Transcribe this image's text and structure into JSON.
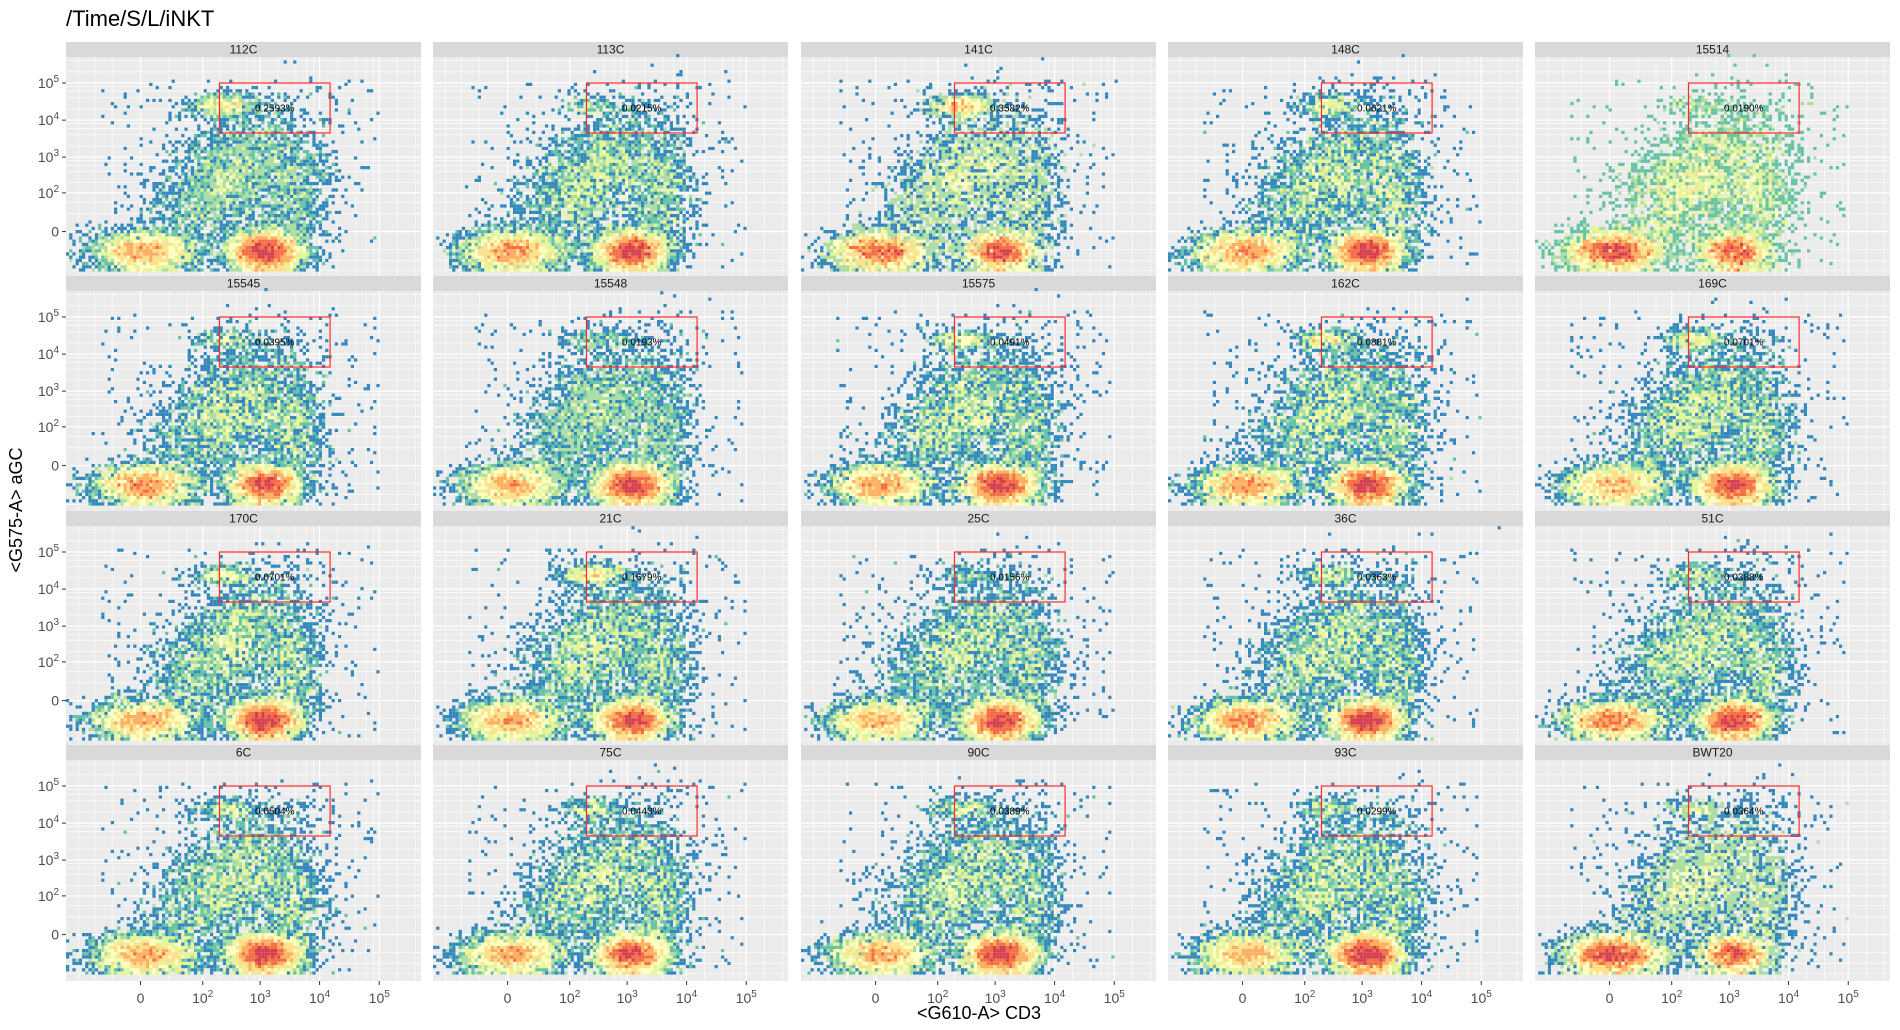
{
  "chart_data": {
    "type": "scatter",
    "title": "/Time/S/L/iNKT",
    "xlabel": "<G610-A> CD3",
    "ylabel": "<G575-A> aGC",
    "x_ticks": [
      {
        "value": 0,
        "base": "0",
        "sup": ""
      },
      {
        "value": 100,
        "base": "10",
        "sup": "2"
      },
      {
        "value": 1000,
        "base": "10",
        "sup": "3"
      },
      {
        "value": 10000,
        "base": "10",
        "sup": "4"
      },
      {
        "value": 100000,
        "base": "10",
        "sup": "5"
      }
    ],
    "y_ticks": [
      {
        "value": 0,
        "base": "0",
        "sup": ""
      },
      {
        "value": 100,
        "base": "10",
        "sup": "2"
      },
      {
        "value": 1000,
        "base": "10",
        "sup": "3"
      },
      {
        "value": 10000,
        "base": "10",
        "sup": "4"
      },
      {
        "value": 100000,
        "base": "10",
        "sup": "5"
      }
    ],
    "gate": {
      "x_range": [
        200,
        15000
      ],
      "y_range": [
        4500,
        100000
      ],
      "color": "#FF2B2B"
    },
    "colors": {
      "panel_bg": "#EBEBEB",
      "strip_bg": "#D9D9D9",
      "grid": "#FFFFFF",
      "palette": [
        "#5E4FA2",
        "#3288BD",
        "#66C2A5",
        "#ABDDA4",
        "#E6F598",
        "#FFFFBF",
        "#FEE08B",
        "#FDAE61",
        "#F46D43",
        "#D53E4F"
      ]
    },
    "panels": [
      {
        "sample": "112C",
        "gate_pct": "0.2593%",
        "inkt_density": 0.9,
        "cd3_intensity": 1.0,
        "dn_intensity": 0.6
      },
      {
        "sample": "113C",
        "gate_pct": "0.0215%",
        "inkt_density": 0.2,
        "cd3_intensity": 0.85,
        "dn_intensity": 0.65
      },
      {
        "sample": "141C",
        "gate_pct": "0.3582%",
        "inkt_density": 1.0,
        "cd3_intensity": 0.55,
        "dn_intensity": 0.6
      },
      {
        "sample": "148C",
        "gate_pct": "0.0621%",
        "inkt_density": 0.45,
        "cd3_intensity": 0.75,
        "dn_intensity": 0.6
      },
      {
        "sample": "15514",
        "gate_pct": "0.0190%",
        "inkt_density": 0.15,
        "cd3_intensity": 0.4,
        "dn_intensity": 0.6
      },
      {
        "sample": "15545",
        "gate_pct": "0.0395%",
        "inkt_density": 0.3,
        "cd3_intensity": 0.6,
        "dn_intensity": 0.55
      },
      {
        "sample": "15548",
        "gate_pct": "0.0193%",
        "inkt_density": 0.25,
        "cd3_intensity": 1.0,
        "dn_intensity": 0.6
      },
      {
        "sample": "15575",
        "gate_pct": "0.0491%",
        "inkt_density": 0.5,
        "cd3_intensity": 0.8,
        "dn_intensity": 0.55
      },
      {
        "sample": "162C",
        "gate_pct": "0.0881%",
        "inkt_density": 0.6,
        "cd3_intensity": 0.75,
        "dn_intensity": 0.55
      },
      {
        "sample": "169C",
        "gate_pct": "0.0701%",
        "inkt_density": 0.55,
        "cd3_intensity": 0.85,
        "dn_intensity": 0.55
      },
      {
        "sample": "170C",
        "gate_pct": "0.0701%",
        "inkt_density": 0.45,
        "cd3_intensity": 0.85,
        "dn_intensity": 0.55
      },
      {
        "sample": "21C",
        "gate_pct": "0.1679%",
        "inkt_density": 0.85,
        "cd3_intensity": 0.85,
        "dn_intensity": 0.6
      },
      {
        "sample": "25C",
        "gate_pct": "0.0156%",
        "inkt_density": 0.15,
        "cd3_intensity": 0.9,
        "dn_intensity": 0.55
      },
      {
        "sample": "36C",
        "gate_pct": "0.0363%",
        "inkt_density": 0.35,
        "cd3_intensity": 0.8,
        "dn_intensity": 0.6
      },
      {
        "sample": "51C",
        "gate_pct": "0.0388%",
        "inkt_density": 0.35,
        "cd3_intensity": 0.7,
        "dn_intensity": 0.6
      },
      {
        "sample": "6C",
        "gate_pct": "0.0504%",
        "inkt_density": 0.4,
        "cd3_intensity": 0.9,
        "dn_intensity": 0.6
      },
      {
        "sample": "75C",
        "gate_pct": "0.0443%",
        "inkt_density": 0.35,
        "cd3_intensity": 0.75,
        "dn_intensity": 0.55
      },
      {
        "sample": "90C",
        "gate_pct": "0.0389%",
        "inkt_density": 0.4,
        "cd3_intensity": 0.85,
        "dn_intensity": 0.55
      },
      {
        "sample": "93C",
        "gate_pct": "0.0299%",
        "inkt_density": 0.3,
        "cd3_intensity": 0.95,
        "dn_intensity": 0.5
      },
      {
        "sample": "BWT20",
        "gate_pct": "0.0364%",
        "inkt_density": 0.3,
        "cd3_intensity": 0.45,
        "dn_intensity": 0.75
      }
    ]
  }
}
